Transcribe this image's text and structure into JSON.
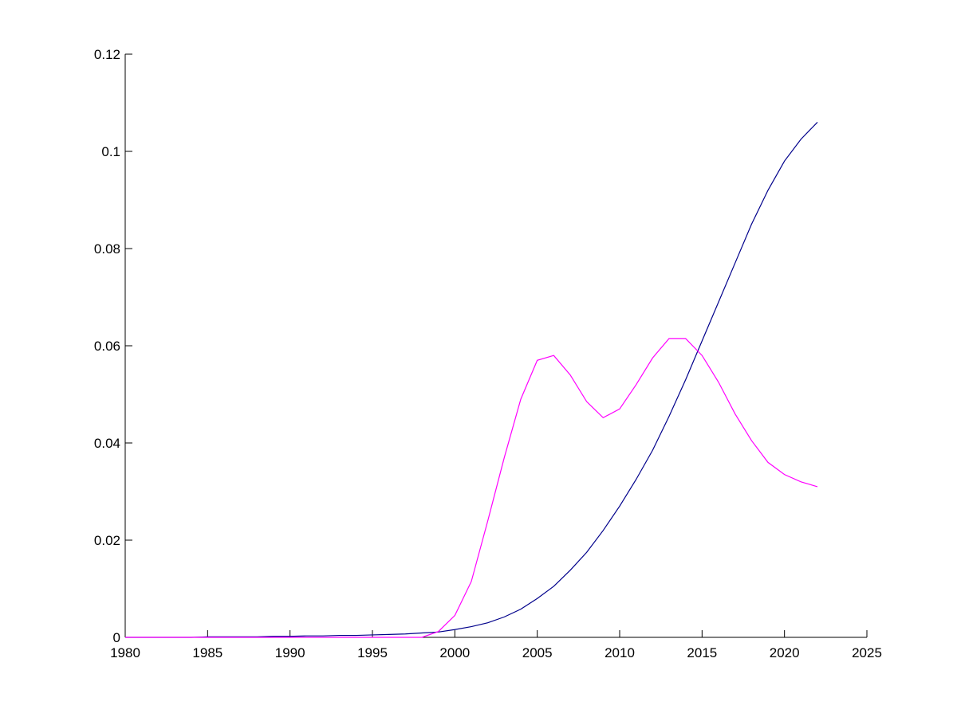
{
  "chart_data": {
    "type": "line",
    "x": [
      1980,
      1981,
      1982,
      1983,
      1984,
      1985,
      1986,
      1987,
      1988,
      1989,
      1990,
      1991,
      1992,
      1993,
      1994,
      1995,
      1996,
      1997,
      1998,
      1999,
      2000,
      2001,
      2002,
      2003,
      2004,
      2005,
      2006,
      2007,
      2008,
      2009,
      2010,
      2011,
      2012,
      2013,
      2014,
      2015,
      2016,
      2017,
      2018,
      2019,
      2020,
      2021,
      2022
    ],
    "series": [
      {
        "color": "#00008b",
        "values": [
          0,
          0,
          0,
          0,
          0,
          0.0001,
          0.0001,
          0.0001,
          0.0001,
          0.0002,
          0.0002,
          0.0003,
          0.0003,
          0.0004,
          0.0004,
          0.0005,
          0.0006,
          0.0007,
          0.0009,
          0.0011,
          0.0016,
          0.0022,
          0.003,
          0.0042,
          0.0058,
          0.008,
          0.0105,
          0.0138,
          0.0175,
          0.022,
          0.027,
          0.0325,
          0.0385,
          0.0455,
          0.053,
          0.061,
          0.069,
          0.077,
          0.085,
          0.092,
          0.098,
          0.1025,
          0.106
        ]
      },
      {
        "color": "#ff00ff",
        "values": [
          0,
          0,
          0,
          0,
          0,
          0,
          0,
          0,
          0,
          0,
          0,
          0,
          0,
          0,
          0,
          0,
          0,
          0,
          0,
          0.0012,
          0.0045,
          0.0115,
          0.024,
          0.037,
          0.049,
          0.057,
          0.058,
          0.054,
          0.0485,
          0.0452,
          0.047,
          0.052,
          0.0575,
          0.0615,
          0.0615,
          0.058,
          0.0525,
          0.046,
          0.0405,
          0.036,
          0.0335,
          0.032,
          0.031
        ]
      }
    ],
    "xlim": [
      1980,
      2025
    ],
    "xticks": [
      1980,
      1985,
      1990,
      1995,
      2000,
      2005,
      2010,
      2015,
      2020,
      2025
    ],
    "ylim": [
      0,
      0.12
    ],
    "yticks": [
      0,
      0.02,
      0.04,
      0.06,
      0.08,
      0.1,
      0.12
    ]
  }
}
